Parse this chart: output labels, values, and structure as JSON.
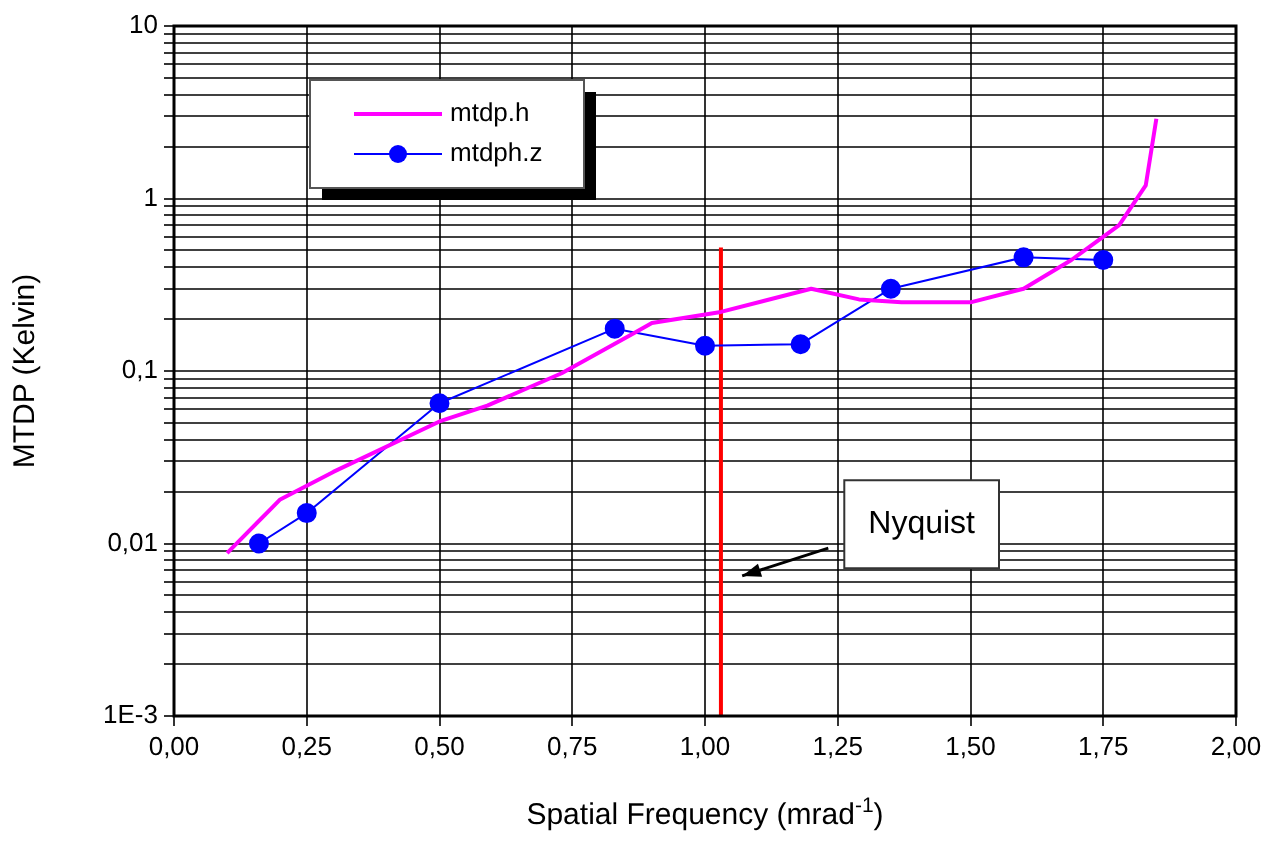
{
  "chart_data": {
    "type": "line",
    "xlabel": "Spatial Frequency (mrad$^{-1}$)",
    "ylabel": "MTDP (Kelvin)",
    "xlim": [
      0,
      2
    ],
    "xticks": [
      {
        "value": 0,
        "label": "0,00"
      },
      {
        "value": 0.25,
        "label": "0,25"
      },
      {
        "value": 0.5,
        "label": "0,50"
      },
      {
        "value": 0.75,
        "label": "0,75"
      },
      {
        "value": 1,
        "label": "1,00"
      },
      {
        "value": 1.25,
        "label": "1,25"
      },
      {
        "value": 1.5,
        "label": "1,50"
      },
      {
        "value": 1.75,
        "label": "1,75"
      },
      {
        "value": 2,
        "label": "2,00"
      }
    ],
    "ylim": [
      0.001,
      10
    ],
    "yticks": [
      {
        "value": 0.001,
        "label": "1E-3"
      },
      {
        "value": 0.002,
        "label": null
      },
      {
        "value": 0.003,
        "label": null
      },
      {
        "value": 0.004,
        "label": null
      },
      {
        "value": 0.005,
        "label": null
      },
      {
        "value": 0.006,
        "label": null
      },
      {
        "value": 0.007,
        "label": null
      },
      {
        "value": 0.008,
        "label": null
      },
      {
        "value": 0.009,
        "label": null
      },
      {
        "value": 0.01,
        "label": "0,01"
      },
      {
        "value": 0.02,
        "label": null
      },
      {
        "value": 0.03,
        "label": null
      },
      {
        "value": 0.04,
        "label": null
      },
      {
        "value": 0.05,
        "label": null
      },
      {
        "value": 0.06,
        "label": null
      },
      {
        "value": 0.07,
        "label": null
      },
      {
        "value": 0.08,
        "label": null
      },
      {
        "value": 0.09,
        "label": null
      },
      {
        "value": 0.1,
        "label": "0,1"
      },
      {
        "value": 0.2,
        "label": null
      },
      {
        "value": 0.3,
        "label": null
      },
      {
        "value": 0.4,
        "label": null
      },
      {
        "value": 0.5,
        "label": null
      },
      {
        "value": 0.6,
        "label": null
      },
      {
        "value": 0.7,
        "label": null
      },
      {
        "value": 0.8,
        "label": null
      },
      {
        "value": 0.9,
        "label": null
      },
      {
        "value": 1,
        "label": "1"
      },
      {
        "value": 2,
        "label": null
      },
      {
        "value": 3,
        "label": null
      },
      {
        "value": 4,
        "label": null
      },
      {
        "value": 5,
        "label": null
      },
      {
        "value": 6,
        "label": null
      },
      {
        "value": 7,
        "label": null
      },
      {
        "value": 8,
        "label": null
      },
      {
        "value": 9,
        "label": null
      },
      {
        "value": 10,
        "label": "10"
      }
    ],
    "log": "y",
    "grid": true,
    "legend": "top left",
    "series": [
      {
        "name": "mtdp.h",
        "color": "#ff00ff",
        "marker": "none",
        "x": [
          0.1,
          0.2,
          0.3,
          0.5,
          0.59,
          0.73,
          0.865,
          0.9,
          1.03,
          1.2,
          1.29,
          1.37,
          1.5,
          1.6,
          1.69,
          1.78,
          1.83,
          1.85
        ],
        "values": [
          0.0088,
          0.018,
          0.026,
          0.051,
          0.063,
          0.097,
          0.165,
          0.19,
          0.22,
          0.3,
          0.26,
          0.25,
          0.25,
          0.3,
          0.44,
          0.7,
          1.19,
          2.9
        ]
      },
      {
        "name": "mtdph.z",
        "color": "#0000ff",
        "marker": "circle",
        "x": [
          0.16,
          0.25,
          0.5,
          0.83,
          1.0,
          1.18,
          1.35,
          1.6,
          1.75
        ],
        "values": [
          0.01,
          0.015,
          0.065,
          0.176,
          0.14,
          0.143,
          0.3,
          0.456,
          0.44
        ]
      },
      {
        "color": "#ff0000",
        "marker": "none",
        "x": [
          1.03,
          1.03
        ],
        "values": [
          0.001,
          0.52
        ]
      }
    ],
    "annotations": [
      "Nyquist"
    ]
  }
}
